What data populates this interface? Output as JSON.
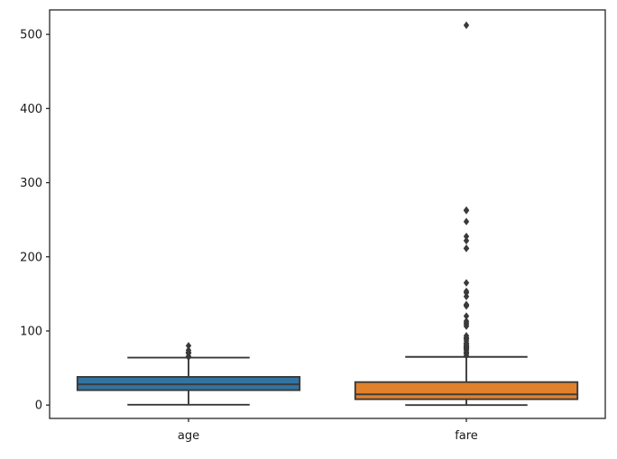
{
  "figure": {
    "background": "#ffffff",
    "spine_color": "#262626",
    "text_color": "#1a1a1a",
    "tick_font_size": 13
  },
  "chart_data": {
    "type": "boxplot",
    "title": "",
    "xlabel": "",
    "ylabel": "",
    "categories": [
      "age",
      "fare"
    ],
    "yticks": [
      0,
      100,
      200,
      300,
      400,
      500
    ],
    "ylim": [
      -18,
      533
    ],
    "grid": false,
    "legend": null,
    "line_color": "#3a3a3a",
    "flier_marker": "diamond",
    "box_width_fraction": 0.8,
    "cap_width_fraction": 0.55,
    "series": [
      {
        "name": "age",
        "color": "#3274a1",
        "whisker_low": 0.42,
        "q1": 20.12,
        "median": 28,
        "q3": 38,
        "whisker_high": 64,
        "outliers": [
          65,
          65,
          65,
          66,
          70,
          70,
          70.5,
          71,
          71,
          74,
          80
        ]
      },
      {
        "name": "fare",
        "color": "#e1812c",
        "whisker_low": 0,
        "q1": 7.91,
        "median": 14.45,
        "q3": 31,
        "whisker_high": 65,
        "outliers": [
          66.6,
          69.3,
          69.55,
          71,
          71.28,
          73.5,
          75.25,
          76.29,
          76.73,
          77.29,
          77.96,
          78.27,
          78.85,
          79.2,
          79.65,
          80,
          81.86,
          82.17,
          83.16,
          83.48,
          86.5,
          89.1,
          90,
          91.08,
          93.5,
          106.43,
          108.9,
          110.88,
          113.28,
          120,
          133.65,
          134.5,
          135.63,
          146.52,
          151.55,
          153.46,
          164.87,
          211.34,
          211.5,
          221.78,
          227.53,
          247.52,
          262.38,
          263,
          512.33
        ]
      }
    ]
  }
}
